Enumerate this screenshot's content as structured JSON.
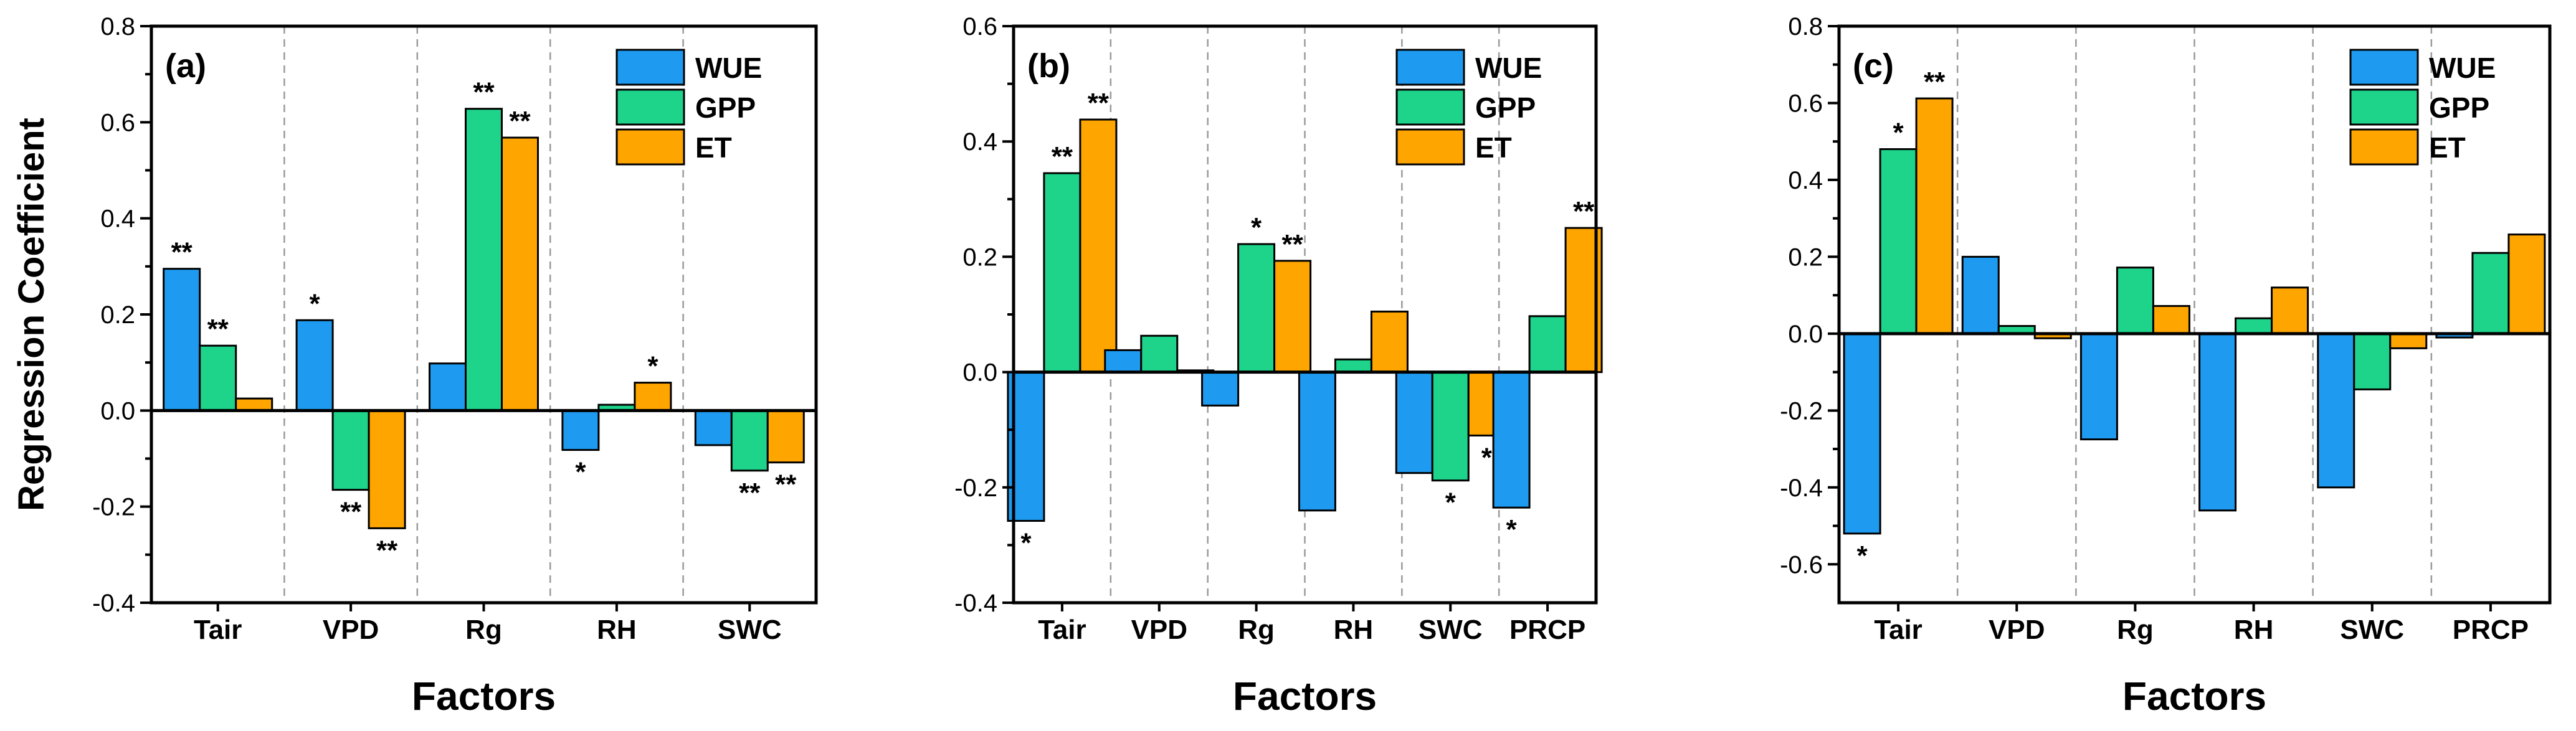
{
  "chart_data": [
    {
      "type": "bar",
      "panel_label": "(a)",
      "categories": [
        "Tair",
        "VPD",
        "Rg",
        "RH",
        "SWC"
      ],
      "series": [
        {
          "name": "WUE",
          "color": "#1E9BF0",
          "values": [
            0.295,
            0.188,
            0.098,
            -0.082,
            -0.072
          ],
          "sig": [
            "**",
            "*",
            "",
            "*",
            ""
          ]
        },
        {
          "name": "GPP",
          "color": "#1ED38A",
          "values": [
            0.135,
            -0.165,
            0.628,
            0.012,
            -0.125
          ],
          "sig": [
            "**",
            "**",
            "**",
            "",
            "**"
          ]
        },
        {
          "name": "ET",
          "color": "#FFA500",
          "values": [
            0.025,
            -0.245,
            0.568,
            0.058,
            -0.108
          ],
          "sig": [
            "",
            "**",
            "**",
            "*",
            "**"
          ]
        }
      ],
      "ylim": [
        -0.4,
        0.8
      ],
      "yticks": [
        "-0.4",
        "-0.2",
        "0.0",
        "0.2",
        "0.4",
        "0.6",
        "0.8"
      ],
      "ytick_values": [
        -0.4,
        -0.2,
        0.0,
        0.2,
        0.4,
        0.6,
        0.8
      ],
      "xlabel": "Factors",
      "ylabel": "Regression Coefficient",
      "legend": "top-right"
    },
    {
      "type": "bar",
      "panel_label": "(b)",
      "categories": [
        "Tair",
        "VPD",
        "Rg",
        "RH",
        "SWC",
        "PRCP"
      ],
      "series": [
        {
          "name": "WUE",
          "color": "#1E9BF0",
          "values": [
            -0.258,
            0.038,
            -0.058,
            -0.24,
            -0.175,
            -0.235
          ],
          "sig": [
            "*",
            "",
            "",
            "",
            "",
            "*"
          ]
        },
        {
          "name": "GPP",
          "color": "#1ED38A",
          "values": [
            0.345,
            0.063,
            0.222,
            0.022,
            -0.188,
            0.097
          ],
          "sig": [
            "**",
            "",
            "*",
            "",
            "*",
            ""
          ]
        },
        {
          "name": "ET",
          "color": "#FFA500",
          "values": [
            0.438,
            0.003,
            0.193,
            0.105,
            -0.11,
            0.25
          ],
          "sig": [
            "**",
            "",
            "**",
            "",
            "*",
            "**"
          ]
        }
      ],
      "ylim": [
        -0.4,
        0.6
      ],
      "yticks": [
        "-0.4",
        "-0.2",
        "0.0",
        "0.2",
        "0.4",
        "0.6"
      ],
      "ytick_values": [
        -0.4,
        -0.2,
        0.0,
        0.2,
        0.4,
        0.6
      ],
      "xlabel": "Factors",
      "ylabel": "",
      "legend": "top-right"
    },
    {
      "type": "bar",
      "panel_label": "(c)",
      "categories": [
        "Tair",
        "VPD",
        "Rg",
        "RH",
        "SWC",
        "PRCP"
      ],
      "series": [
        {
          "name": "WUE",
          "color": "#1E9BF0",
          "values": [
            -0.52,
            0.2,
            -0.275,
            -0.46,
            -0.4,
            -0.01
          ],
          "sig": [
            "*",
            "",
            "",
            "",
            "",
            ""
          ]
        },
        {
          "name": "GPP",
          "color": "#1ED38A",
          "values": [
            0.48,
            0.02,
            0.172,
            0.04,
            -0.145,
            0.21
          ],
          "sig": [
            "*",
            "",
            "",
            "",
            "",
            ""
          ]
        },
        {
          "name": "ET",
          "color": "#FFA500",
          "values": [
            0.612,
            -0.012,
            0.072,
            0.12,
            -0.038,
            0.258
          ],
          "sig": [
            "**",
            "",
            "",
            "",
            "",
            ""
          ]
        }
      ],
      "ylim": [
        -0.7,
        0.8
      ],
      "yticks": [
        "-0.6",
        "-0.4",
        "-0.2",
        "0.0",
        "0.2",
        "0.4",
        "0.6",
        "0.8"
      ],
      "ytick_values": [
        -0.6,
        -0.4,
        -0.2,
        0.0,
        0.2,
        0.4,
        0.6,
        0.8
      ],
      "xlabel": "Factors",
      "ylabel": "",
      "legend": "top-right"
    }
  ]
}
